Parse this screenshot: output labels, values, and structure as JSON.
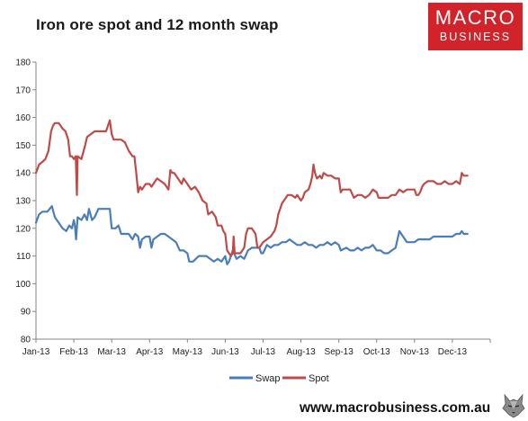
{
  "title": "Iron ore spot and 12 month swap",
  "brand": {
    "line1": "MACRO",
    "line2": "BUSINESS"
  },
  "website": "www.macrobusiness.com.au",
  "colors": {
    "swap": "#4a7ebb",
    "spot": "#be4b48",
    "brand": "#d2232a"
  },
  "icons": {
    "logo": "wolf-head-icon"
  },
  "chart_data": {
    "type": "line",
    "title": "Iron ore spot and 12 month swap",
    "xlabel": "",
    "ylabel": "",
    "ylim": [
      80,
      180
    ],
    "yticks": [
      80,
      90,
      100,
      110,
      120,
      130,
      140,
      150,
      160,
      170,
      180
    ],
    "categories": [
      "Jan-13",
      "Feb-13",
      "Mar-13",
      "Apr-13",
      "May-13",
      "Jun-13",
      "Jul-13",
      "Aug-13",
      "Sep-13",
      "Oct-13",
      "Nov-13",
      "Dec-13"
    ],
    "grid": false,
    "legend": "bottom",
    "series": [
      {
        "name": "Swap",
        "points": [
          [
            0.0,
            122
          ],
          [
            0.08,
            125
          ],
          [
            0.17,
            126
          ],
          [
            0.3,
            126
          ],
          [
            0.42,
            128
          ],
          [
            0.5,
            124
          ],
          [
            0.6,
            122
          ],
          [
            0.7,
            120
          ],
          [
            0.8,
            119
          ],
          [
            0.88,
            121
          ],
          [
            0.95,
            120
          ],
          [
            1.0,
            123
          ],
          [
            1.03,
            121
          ],
          [
            1.06,
            116
          ],
          [
            1.1,
            124
          ],
          [
            1.2,
            123
          ],
          [
            1.28,
            125
          ],
          [
            1.35,
            123
          ],
          [
            1.4,
            127
          ],
          [
            1.48,
            123
          ],
          [
            1.55,
            124
          ],
          [
            1.65,
            127
          ],
          [
            1.75,
            127
          ],
          [
            1.85,
            127
          ],
          [
            1.95,
            127
          ],
          [
            2.0,
            120
          ],
          [
            2.1,
            120
          ],
          [
            2.18,
            121
          ],
          [
            2.25,
            118
          ],
          [
            2.35,
            118
          ],
          [
            2.45,
            118
          ],
          [
            2.55,
            116
          ],
          [
            2.62,
            118
          ],
          [
            2.7,
            117
          ],
          [
            2.75,
            113
          ],
          [
            2.8,
            116
          ],
          [
            2.9,
            117
          ],
          [
            3.0,
            117
          ],
          [
            3.05,
            113
          ],
          [
            3.1,
            116
          ],
          [
            3.2,
            117
          ],
          [
            3.3,
            118
          ],
          [
            3.4,
            118
          ],
          [
            3.5,
            117
          ],
          [
            3.6,
            116
          ],
          [
            3.7,
            115
          ],
          [
            3.8,
            112
          ],
          [
            3.9,
            112
          ],
          [
            4.0,
            111
          ],
          [
            4.05,
            108
          ],
          [
            4.15,
            108
          ],
          [
            4.3,
            110
          ],
          [
            4.5,
            110
          ],
          [
            4.7,
            108
          ],
          [
            4.8,
            109
          ],
          [
            4.9,
            108
          ],
          [
            5.0,
            110
          ],
          [
            5.05,
            107
          ],
          [
            5.1,
            108
          ],
          [
            5.2,
            112
          ],
          [
            5.3,
            109
          ],
          [
            5.4,
            110
          ],
          [
            5.5,
            109
          ],
          [
            5.6,
            112
          ],
          [
            5.7,
            113
          ],
          [
            5.8,
            113
          ],
          [
            5.9,
            113
          ],
          [
            5.95,
            111
          ],
          [
            6.0,
            111
          ],
          [
            6.1,
            114
          ],
          [
            6.2,
            113
          ],
          [
            6.3,
            114
          ],
          [
            6.4,
            114
          ],
          [
            6.5,
            115
          ],
          [
            6.6,
            115
          ],
          [
            6.7,
            116
          ],
          [
            6.8,
            115
          ],
          [
            6.9,
            114
          ],
          [
            7.0,
            114
          ],
          [
            7.1,
            115
          ],
          [
            7.2,
            114
          ],
          [
            7.3,
            114
          ],
          [
            7.4,
            113
          ],
          [
            7.5,
            114
          ],
          [
            7.6,
            114
          ],
          [
            7.7,
            115
          ],
          [
            7.8,
            114
          ],
          [
            7.9,
            115
          ],
          [
            8.0,
            114
          ],
          [
            8.05,
            112
          ],
          [
            8.2,
            113
          ],
          [
            8.3,
            112
          ],
          [
            8.4,
            112
          ],
          [
            8.5,
            113
          ],
          [
            8.6,
            112
          ],
          [
            8.7,
            113
          ],
          [
            8.8,
            113
          ],
          [
            8.9,
            114
          ],
          [
            9.0,
            112
          ],
          [
            9.1,
            112
          ],
          [
            9.2,
            111
          ],
          [
            9.3,
            111
          ],
          [
            9.4,
            112
          ],
          [
            9.5,
            113
          ],
          [
            9.6,
            119
          ],
          [
            9.65,
            118
          ],
          [
            9.75,
            116
          ],
          [
            9.8,
            115
          ],
          [
            9.85,
            115
          ],
          [
            9.9,
            115
          ],
          [
            10.0,
            115
          ],
          [
            10.1,
            116
          ],
          [
            10.2,
            116
          ],
          [
            10.3,
            116
          ],
          [
            10.4,
            116
          ],
          [
            10.5,
            117
          ],
          [
            10.6,
            117
          ],
          [
            10.7,
            117
          ],
          [
            10.8,
            117
          ],
          [
            10.9,
            117
          ],
          [
            11.0,
            117
          ],
          [
            11.1,
            118
          ],
          [
            11.2,
            118
          ],
          [
            11.25,
            119
          ],
          [
            11.3,
            118
          ],
          [
            11.4,
            118
          ]
        ]
      },
      {
        "name": "Spot",
        "points": [
          [
            0.0,
            140
          ],
          [
            0.08,
            143
          ],
          [
            0.17,
            144
          ],
          [
            0.25,
            145
          ],
          [
            0.33,
            148
          ],
          [
            0.4,
            155
          ],
          [
            0.45,
            157
          ],
          [
            0.5,
            158
          ],
          [
            0.6,
            158
          ],
          [
            0.7,
            156
          ],
          [
            0.78,
            155
          ],
          [
            0.85,
            152
          ],
          [
            0.9,
            146
          ],
          [
            0.95,
            146
          ],
          [
            1.0,
            145
          ],
          [
            1.05,
            146
          ],
          [
            1.08,
            132
          ],
          [
            1.1,
            146
          ],
          [
            1.2,
            145
          ],
          [
            1.3,
            150
          ],
          [
            1.35,
            153
          ],
          [
            1.45,
            154
          ],
          [
            1.55,
            155
          ],
          [
            1.65,
            155
          ],
          [
            1.75,
            155
          ],
          [
            1.85,
            155
          ],
          [
            1.9,
            157
          ],
          [
            1.95,
            159
          ],
          [
            2.0,
            154
          ],
          [
            2.05,
            152
          ],
          [
            2.15,
            152
          ],
          [
            2.25,
            152
          ],
          [
            2.35,
            151
          ],
          [
            2.45,
            148
          ],
          [
            2.55,
            146
          ],
          [
            2.6,
            146
          ],
          [
            2.65,
            140
          ],
          [
            2.7,
            133
          ],
          [
            2.75,
            135
          ],
          [
            2.8,
            134
          ],
          [
            2.9,
            136
          ],
          [
            3.0,
            136
          ],
          [
            3.05,
            135
          ],
          [
            3.15,
            137
          ],
          [
            3.2,
            138
          ],
          [
            3.3,
            137
          ],
          [
            3.4,
            136
          ],
          [
            3.5,
            134
          ],
          [
            3.55,
            141
          ],
          [
            3.6,
            140
          ],
          [
            3.65,
            140
          ],
          [
            3.75,
            138
          ],
          [
            3.85,
            136
          ],
          [
            3.9,
            138
          ],
          [
            4.0,
            136
          ],
          [
            4.05,
            135
          ],
          [
            4.1,
            134
          ],
          [
            4.2,
            135
          ],
          [
            4.3,
            133
          ],
          [
            4.4,
            130
          ],
          [
            4.5,
            129
          ],
          [
            4.55,
            125
          ],
          [
            4.65,
            126
          ],
          [
            4.75,
            124
          ],
          [
            4.8,
            121
          ],
          [
            4.85,
            121
          ],
          [
            4.9,
            121
          ],
          [
            4.95,
            119
          ],
          [
            5.0,
            118
          ],
          [
            5.05,
            112
          ],
          [
            5.1,
            111
          ],
          [
            5.15,
            110
          ],
          [
            5.2,
            111
          ],
          [
            5.22,
            117
          ],
          [
            5.25,
            111
          ],
          [
            5.3,
            111
          ],
          [
            5.4,
            111
          ],
          [
            5.5,
            113
          ],
          [
            5.55,
            118
          ],
          [
            5.6,
            120
          ],
          [
            5.7,
            120
          ],
          [
            5.8,
            118
          ],
          [
            5.85,
            113
          ],
          [
            5.9,
            113
          ],
          [
            6.0,
            115
          ],
          [
            6.1,
            116
          ],
          [
            6.2,
            117
          ],
          [
            6.3,
            119
          ],
          [
            6.35,
            121
          ],
          [
            6.4,
            125
          ],
          [
            6.5,
            129
          ],
          [
            6.6,
            131
          ],
          [
            6.65,
            132
          ],
          [
            6.75,
            132
          ],
          [
            6.85,
            131
          ],
          [
            6.9,
            132
          ],
          [
            7.0,
            130
          ],
          [
            7.05,
            131
          ],
          [
            7.1,
            133
          ],
          [
            7.2,
            134
          ],
          [
            7.25,
            136
          ],
          [
            7.3,
            139
          ],
          [
            7.33,
            143
          ],
          [
            7.37,
            140
          ],
          [
            7.42,
            138
          ],
          [
            7.5,
            139
          ],
          [
            7.55,
            138
          ],
          [
            7.6,
            140
          ],
          [
            7.7,
            139
          ],
          [
            7.8,
            139
          ],
          [
            7.9,
            138
          ],
          [
            8.0,
            138
          ],
          [
            8.05,
            133
          ],
          [
            8.1,
            134
          ],
          [
            8.2,
            134
          ],
          [
            8.3,
            134
          ],
          [
            8.4,
            131
          ],
          [
            8.5,
            132
          ],
          [
            8.6,
            132
          ],
          [
            8.7,
            131
          ],
          [
            8.8,
            132
          ],
          [
            8.9,
            134
          ],
          [
            9.0,
            133
          ],
          [
            9.05,
            131
          ],
          [
            9.1,
            131
          ],
          [
            9.2,
            131
          ],
          [
            9.3,
            131
          ],
          [
            9.4,
            132
          ],
          [
            9.5,
            132
          ],
          [
            9.6,
            134
          ],
          [
            9.7,
            133
          ],
          [
            9.8,
            134
          ],
          [
            9.9,
            134
          ],
          [
            10.0,
            134
          ],
          [
            10.05,
            132
          ],
          [
            10.1,
            132
          ],
          [
            10.15,
            133
          ],
          [
            10.2,
            135
          ],
          [
            10.25,
            136
          ],
          [
            10.35,
            137
          ],
          [
            10.5,
            137
          ],
          [
            10.6,
            136
          ],
          [
            10.7,
            136
          ],
          [
            10.8,
            137
          ],
          [
            10.9,
            136
          ],
          [
            11.0,
            136
          ],
          [
            11.1,
            137
          ],
          [
            11.2,
            136
          ],
          [
            11.25,
            140
          ],
          [
            11.3,
            139
          ],
          [
            11.4,
            139
          ]
        ]
      }
    ]
  }
}
